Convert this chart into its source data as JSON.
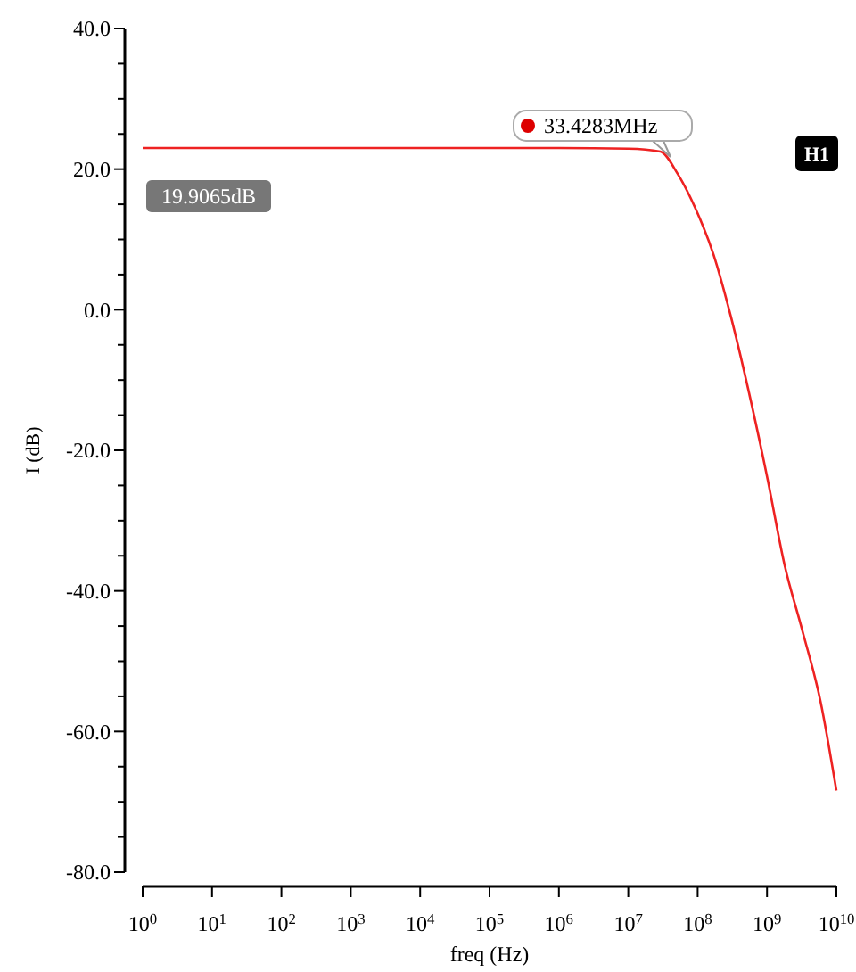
{
  "chart_data": {
    "type": "line",
    "xlabel": "freq (Hz)",
    "ylabel": "I (dB)",
    "log": "x",
    "xlim": [
      1,
      10000000000
    ],
    "ylim": [
      -80,
      40
    ],
    "xticks": [
      {
        "value": 1,
        "label": "10$^{0}$"
      },
      {
        "value": 10,
        "label": "10$^{1}$"
      },
      {
        "value": 100,
        "label": "10$^{2}$"
      },
      {
        "value": 1000,
        "label": "10$^{3}$"
      },
      {
        "value": 10000,
        "label": "10$^{4}$"
      },
      {
        "value": 100000,
        "label": "10$^{5}$"
      },
      {
        "value": 1000000,
        "label": "10$^{6}$"
      },
      {
        "value": 10000000,
        "label": "10$^{7}$"
      },
      {
        "value": 100000000,
        "label": "10$^{8}$"
      },
      {
        "value": 1000000000,
        "label": "10$^{9}$"
      },
      {
        "value": 10000000000,
        "label": "10$^{10}$"
      }
    ],
    "yticks": [
      {
        "value": 40,
        "label": "40.0"
      },
      {
        "value": 35,
        "label": null
      },
      {
        "value": 30,
        "label": null
      },
      {
        "value": 25,
        "label": null
      },
      {
        "value": 20,
        "label": "20.0"
      },
      {
        "value": 15,
        "label": null
      },
      {
        "value": 10,
        "label": null
      },
      {
        "value": 5,
        "label": null
      },
      {
        "value": 0,
        "label": "0.0"
      },
      {
        "value": -5,
        "label": null
      },
      {
        "value": -10,
        "label": null
      },
      {
        "value": -15,
        "label": null
      },
      {
        "value": -20,
        "label": "-20.0"
      },
      {
        "value": -25,
        "label": null
      },
      {
        "value": -30,
        "label": null
      },
      {
        "value": -35,
        "label": null
      },
      {
        "value": -40,
        "label": "-40.0"
      },
      {
        "value": -45,
        "label": null
      },
      {
        "value": -50,
        "label": null
      },
      {
        "value": -55,
        "label": null
      },
      {
        "value": -60,
        "label": "-60.0"
      },
      {
        "value": -65,
        "label": null
      },
      {
        "value": -70,
        "label": null
      },
      {
        "value": -75,
        "label": null
      },
      {
        "value": -80,
        "label": "-80.0"
      }
    ],
    "grid": false,
    "marker": "none",
    "line_style": "solid",
    "series": [
      {
        "color": "#ee2222",
        "x": [
          1,
          1000000,
          10000000,
          29000000,
          51000000,
          93000000,
          170000000,
          300000000,
          550000000,
          1000000000,
          1800000000,
          3200000000,
          5900000000,
          10000000000
        ],
        "values": [
          23,
          23,
          22.9,
          22.5,
          19.4,
          14.4,
          7.8,
          -0.9,
          -11.8,
          -23.7,
          -36.4,
          -45.5,
          -55.7,
          -68.4
        ]
      }
    ],
    "annotations": [
      "33.4283MHz",
      "19.9065dB",
      "H1"
    ]
  }
}
